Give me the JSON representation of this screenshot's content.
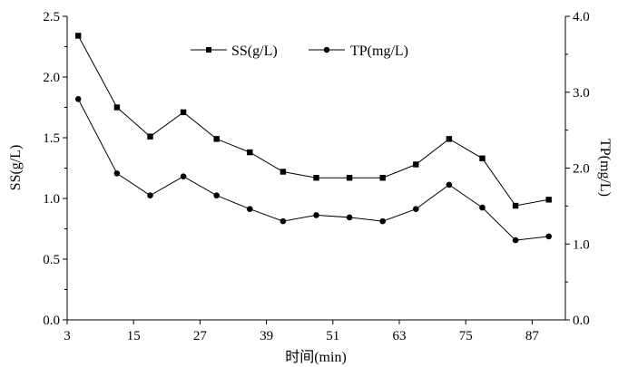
{
  "chart_data": {
    "type": "line",
    "xlabel": "时间(min)",
    "ylabel_left": "SS(g/L)",
    "ylabel_right": "TP(mg/L)",
    "x_ticks": [
      "3",
      "15",
      "27",
      "39",
      "51",
      "63",
      "75",
      "87"
    ],
    "x_range": [
      3,
      93
    ],
    "y_left_ticks": [
      "0.0",
      "0.5",
      "1.0",
      "1.5",
      "2.0",
      "2.5"
    ],
    "y_left_range": [
      0,
      2.5
    ],
    "y_right_ticks": [
      "0.0",
      "1.0",
      "2.0",
      "3.0",
      "4.0"
    ],
    "y_right_range": [
      0,
      4.0
    ],
    "grid": false,
    "legend_position": "top-center",
    "series": [
      {
        "name": "SS(g/L)",
        "axis": "left",
        "marker": "square",
        "x": [
          5,
          12,
          18,
          24,
          30,
          36,
          42,
          48,
          54,
          60,
          66,
          72,
          78,
          84,
          90
        ],
        "y": [
          2.34,
          1.75,
          1.51,
          1.71,
          1.49,
          1.38,
          1.22,
          1.17,
          1.17,
          1.17,
          1.28,
          1.49,
          1.33,
          0.94,
          0.99
        ]
      },
      {
        "name": "TP(mg/L)",
        "axis": "right",
        "marker": "circle",
        "x": [
          5,
          12,
          18,
          24,
          30,
          36,
          42,
          48,
          54,
          60,
          66,
          72,
          78,
          84,
          90
        ],
        "y": [
          2.91,
          1.93,
          1.64,
          1.89,
          1.64,
          1.46,
          1.3,
          1.38,
          1.35,
          1.3,
          1.46,
          1.78,
          1.48,
          1.05,
          1.1
        ]
      }
    ]
  }
}
